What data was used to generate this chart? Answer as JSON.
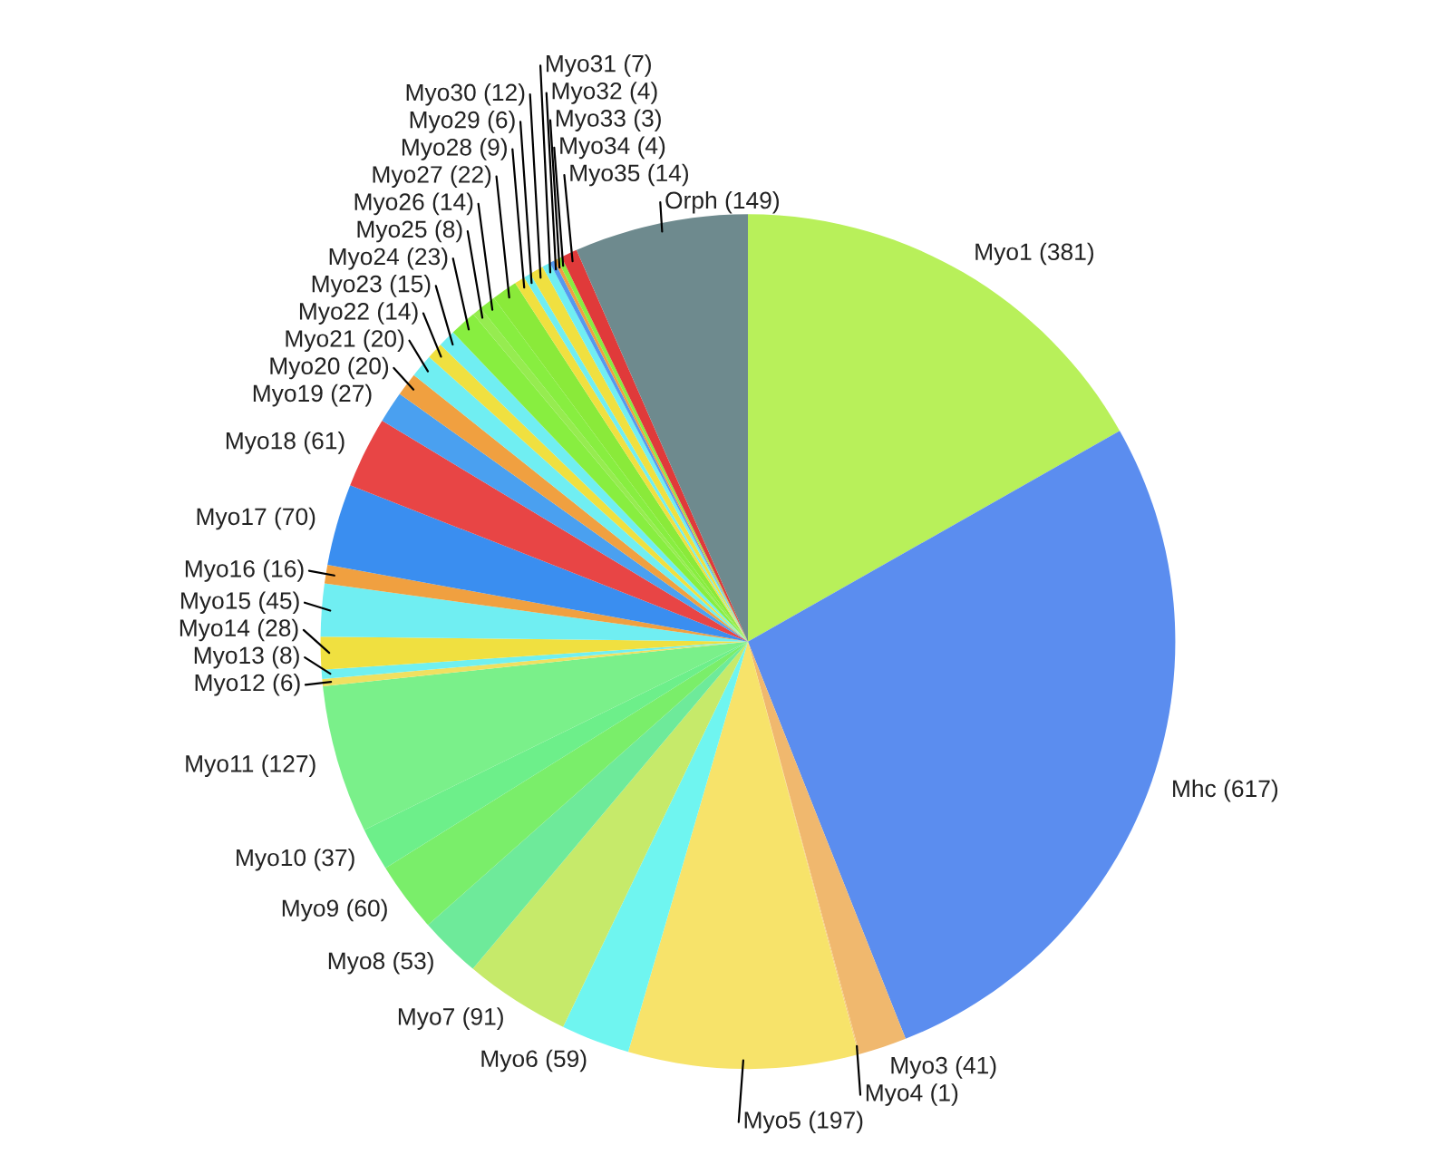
{
  "chart_data": {
    "type": "pie",
    "categories": [
      "Myo1 (381)",
      "Mhc (617)",
      "Myo3 (41)",
      "Myo4 (1)",
      "Myo5 (197)",
      "Myo6 (59)",
      "Myo7 (91)",
      "Myo8 (53)",
      "Myo9 (60)",
      "Myo10 (37)",
      "Myo11 (127)",
      "Myo12 (6)",
      "Myo13 (8)",
      "Myo14 (28)",
      "Myo15 (45)",
      "Myo16 (16)",
      "Myo17 (70)",
      "Myo18 (61)",
      "Myo19 (27)",
      "Myo20 (20)",
      "Myo21 (20)",
      "Myo22 (14)",
      "Myo23 (15)",
      "Myo24 (23)",
      "Myo25 (8)",
      "Myo26 (14)",
      "Myo27 (22)",
      "Myo28 (9)",
      "Myo29 (6)",
      "Myo30 (12)",
      "Myo31 (7)",
      "Myo32 (4)",
      "Myo33 (3)",
      "Myo34 (4)",
      "Myo35 (14)",
      "Orph (149)"
    ],
    "values": [
      381,
      617,
      41,
      1,
      197,
      59,
      91,
      53,
      60,
      37,
      127,
      6,
      8,
      28,
      45,
      16,
      70,
      61,
      27,
      20,
      20,
      14,
      15,
      23,
      8,
      14,
      22,
      9,
      6,
      12,
      7,
      4,
      3,
      4,
      14,
      149
    ],
    "colors": [
      "#b8f05a",
      "#5b8def",
      "#f0b86e",
      "#f5c87a",
      "#f7e36a",
      "#6ff5f0",
      "#c6ea6a",
      "#6eea9a",
      "#7aee6a",
      "#6def8a",
      "#7af08a",
      "#f0e060",
      "#70f0f0",
      "#f0e040",
      "#70eef2",
      "#f0a040",
      "#3a8ef0",
      "#e84545",
      "#4aa0f0",
      "#f0a040",
      "#70eef2",
      "#f0e040",
      "#70eef2",
      "#88ee40",
      "#96ec50",
      "#88ee40",
      "#8aea3a",
      "#f0e040",
      "#70eef2",
      "#f0e040",
      "#70eef2",
      "#5599ee",
      "#f0a040",
      "#88ee40",
      "#e03a3a",
      "#6e8a8e"
    ]
  }
}
